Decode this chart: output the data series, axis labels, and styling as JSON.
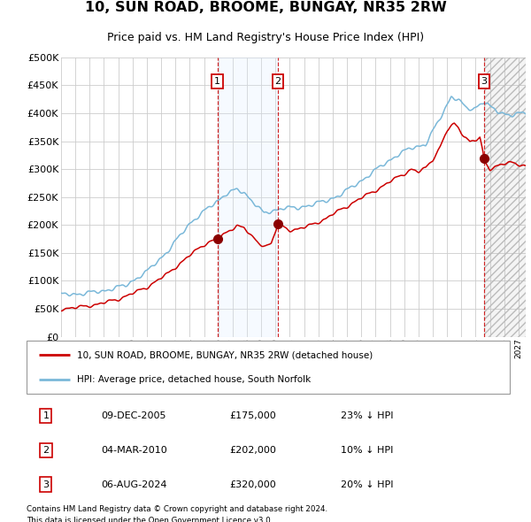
{
  "title": "10, SUN ROAD, BROOME, BUNGAY, NR35 2RW",
  "subtitle": "Price paid vs. HM Land Registry's House Price Index (HPI)",
  "ylabel_ticks": [
    "£0",
    "£50K",
    "£100K",
    "£150K",
    "£200K",
    "£250K",
    "£300K",
    "£350K",
    "£400K",
    "£450K",
    "£500K"
  ],
  "ytick_values": [
    0,
    50000,
    100000,
    150000,
    200000,
    250000,
    300000,
    350000,
    400000,
    450000,
    500000
  ],
  "ylim": [
    0,
    500000
  ],
  "xlim_start": 1995.0,
  "xlim_end": 2027.5,
  "hpi_color": "#7ab8d9",
  "price_color": "#cc0000",
  "sale_marker_color": "#8b0000",
  "vline_color": "#cc0000",
  "shade_color": "#ddeeff",
  "grid_color": "#cccccc",
  "background_color": "#ffffff",
  "legend_label_red": "10, SUN ROAD, BROOME, BUNGAY, NR35 2RW (detached house)",
  "legend_label_blue": "HPI: Average price, detached house, South Norfolk",
  "sale1_x": 2005.94,
  "sale1_y": 175000,
  "sale1_label": "1",
  "sale1_date": "09-DEC-2005",
  "sale1_price": "£175,000",
  "sale1_hpi": "23% ↓ HPI",
  "sale2_x": 2010.17,
  "sale2_y": 202000,
  "sale2_label": "2",
  "sale2_date": "04-MAR-2010",
  "sale2_price": "£202,000",
  "sale2_hpi": "10% ↓ HPI",
  "sale3_x": 2024.59,
  "sale3_y": 320000,
  "sale3_label": "3",
  "sale3_date": "06-AUG-2024",
  "sale3_price": "£320,000",
  "sale3_hpi": "20% ↓ HPI",
  "footer1": "Contains HM Land Registry data © Crown copyright and database right 2024.",
  "footer2": "This data is licensed under the Open Government Licence v3.0."
}
